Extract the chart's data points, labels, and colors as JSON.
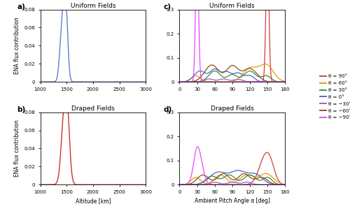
{
  "title_a": "Uniform Fields",
  "title_b": "Draped Fields",
  "title_c": "Uniform Fields",
  "title_d": "Draped Fields",
  "ylabel_ab": "ENA flux contribution",
  "xlabel_ab": "Altitude [km]",
  "xlabel_cd": "Ambient Pitch Angle α [deg]",
  "alt_xlim": [
    1000,
    3000
  ],
  "pa_xlim": [
    0,
    180
  ],
  "pa_ylim": [
    0,
    0.3
  ],
  "color_a": "#6080c8",
  "color_b": "#d43030",
  "legend_labels": [
    "θ = 90°",
    "θ = 60°",
    "θ = 30°",
    "θ = 0°",
    "θ = −30°",
    "θ = −60°",
    "θ = −90°"
  ],
  "legend_colors": [
    "#d43030",
    "#e69500",
    "#2e8b2e",
    "#4060c8",
    "#9955bb",
    "#8B4513",
    "#e040fb"
  ],
  "panel_labels": [
    "a)",
    "b)",
    "c)",
    "d)"
  ]
}
